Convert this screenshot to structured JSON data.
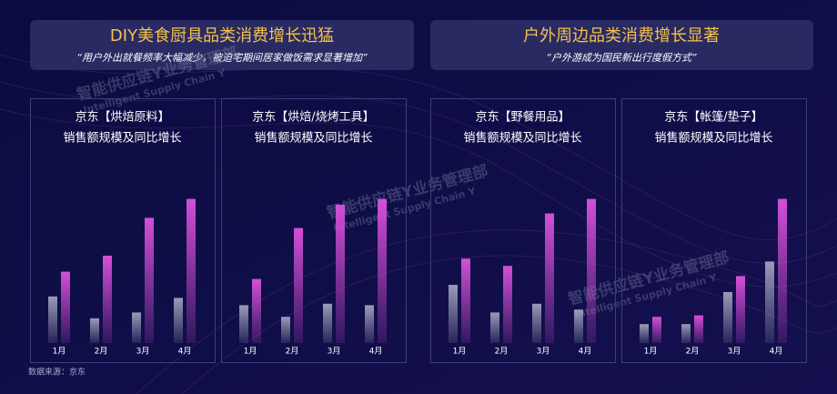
{
  "sections": [
    {
      "title": "DIY美食厨具品类消费增长迅猛",
      "subtitle": "“用户外出就餐频率大幅减少，被迫宅期间居家做饭需求显著增加”"
    },
    {
      "title": "户外周边品类消费增长显著",
      "subtitle": "“户外游成为国民新出行度假方式”"
    }
  ],
  "watermark": {
    "cn": "智能供应链Y业务管理部",
    "en": "Intelligent Supply Chain Y"
  },
  "source": "数据来源：京东",
  "chart_data": [
    {
      "type": "bar",
      "title": "京东【烘焙原料】",
      "subtitle": "销售额规模及同比增长",
      "categories": [
        "1月",
        "2月",
        "3月",
        "4月"
      ],
      "ylim": [
        0,
        100
      ],
      "series": [
        {
          "color": "#9a9bb8",
          "values": [
            32,
            17,
            21,
            31
          ]
        },
        {
          "color": "#d44fd8",
          "values": [
            49,
            60,
            86,
            99
          ]
        }
      ]
    },
    {
      "type": "bar",
      "title": "京东【烘焙/烧烤工具】",
      "subtitle": "销售额规模及同比增长",
      "categories": [
        "1月",
        "2月",
        "3月",
        "4月"
      ],
      "ylim": [
        0,
        100
      ],
      "series": [
        {
          "color": "#9a9bb8",
          "values": [
            26,
            18,
            27,
            26
          ]
        },
        {
          "color": "#d44fd8",
          "values": [
            44,
            79,
            95,
            99
          ]
        }
      ]
    },
    {
      "type": "bar",
      "title": "京东【野餐用品】",
      "subtitle": "销售额规模及同比增长",
      "categories": [
        "1月",
        "2月",
        "3月",
        "4月"
      ],
      "ylim": [
        0,
        100
      ],
      "series": [
        {
          "color": "#9a9bb8",
          "values": [
            40,
            21,
            27,
            23
          ]
        },
        {
          "color": "#d44fd8",
          "values": [
            58,
            53,
            89,
            99
          ]
        }
      ]
    },
    {
      "type": "bar",
      "title": "京东【帐篷/垫子】",
      "subtitle": "销售额规模及同比增长",
      "categories": [
        "1月",
        "2月",
        "3月",
        "4月"
      ],
      "ylim": [
        0,
        100
      ],
      "series": [
        {
          "color": "#9a9bb8",
          "values": [
            13,
            13,
            35,
            56
          ]
        },
        {
          "color": "#d44fd8",
          "values": [
            18,
            19,
            46,
            99
          ]
        }
      ]
    }
  ]
}
